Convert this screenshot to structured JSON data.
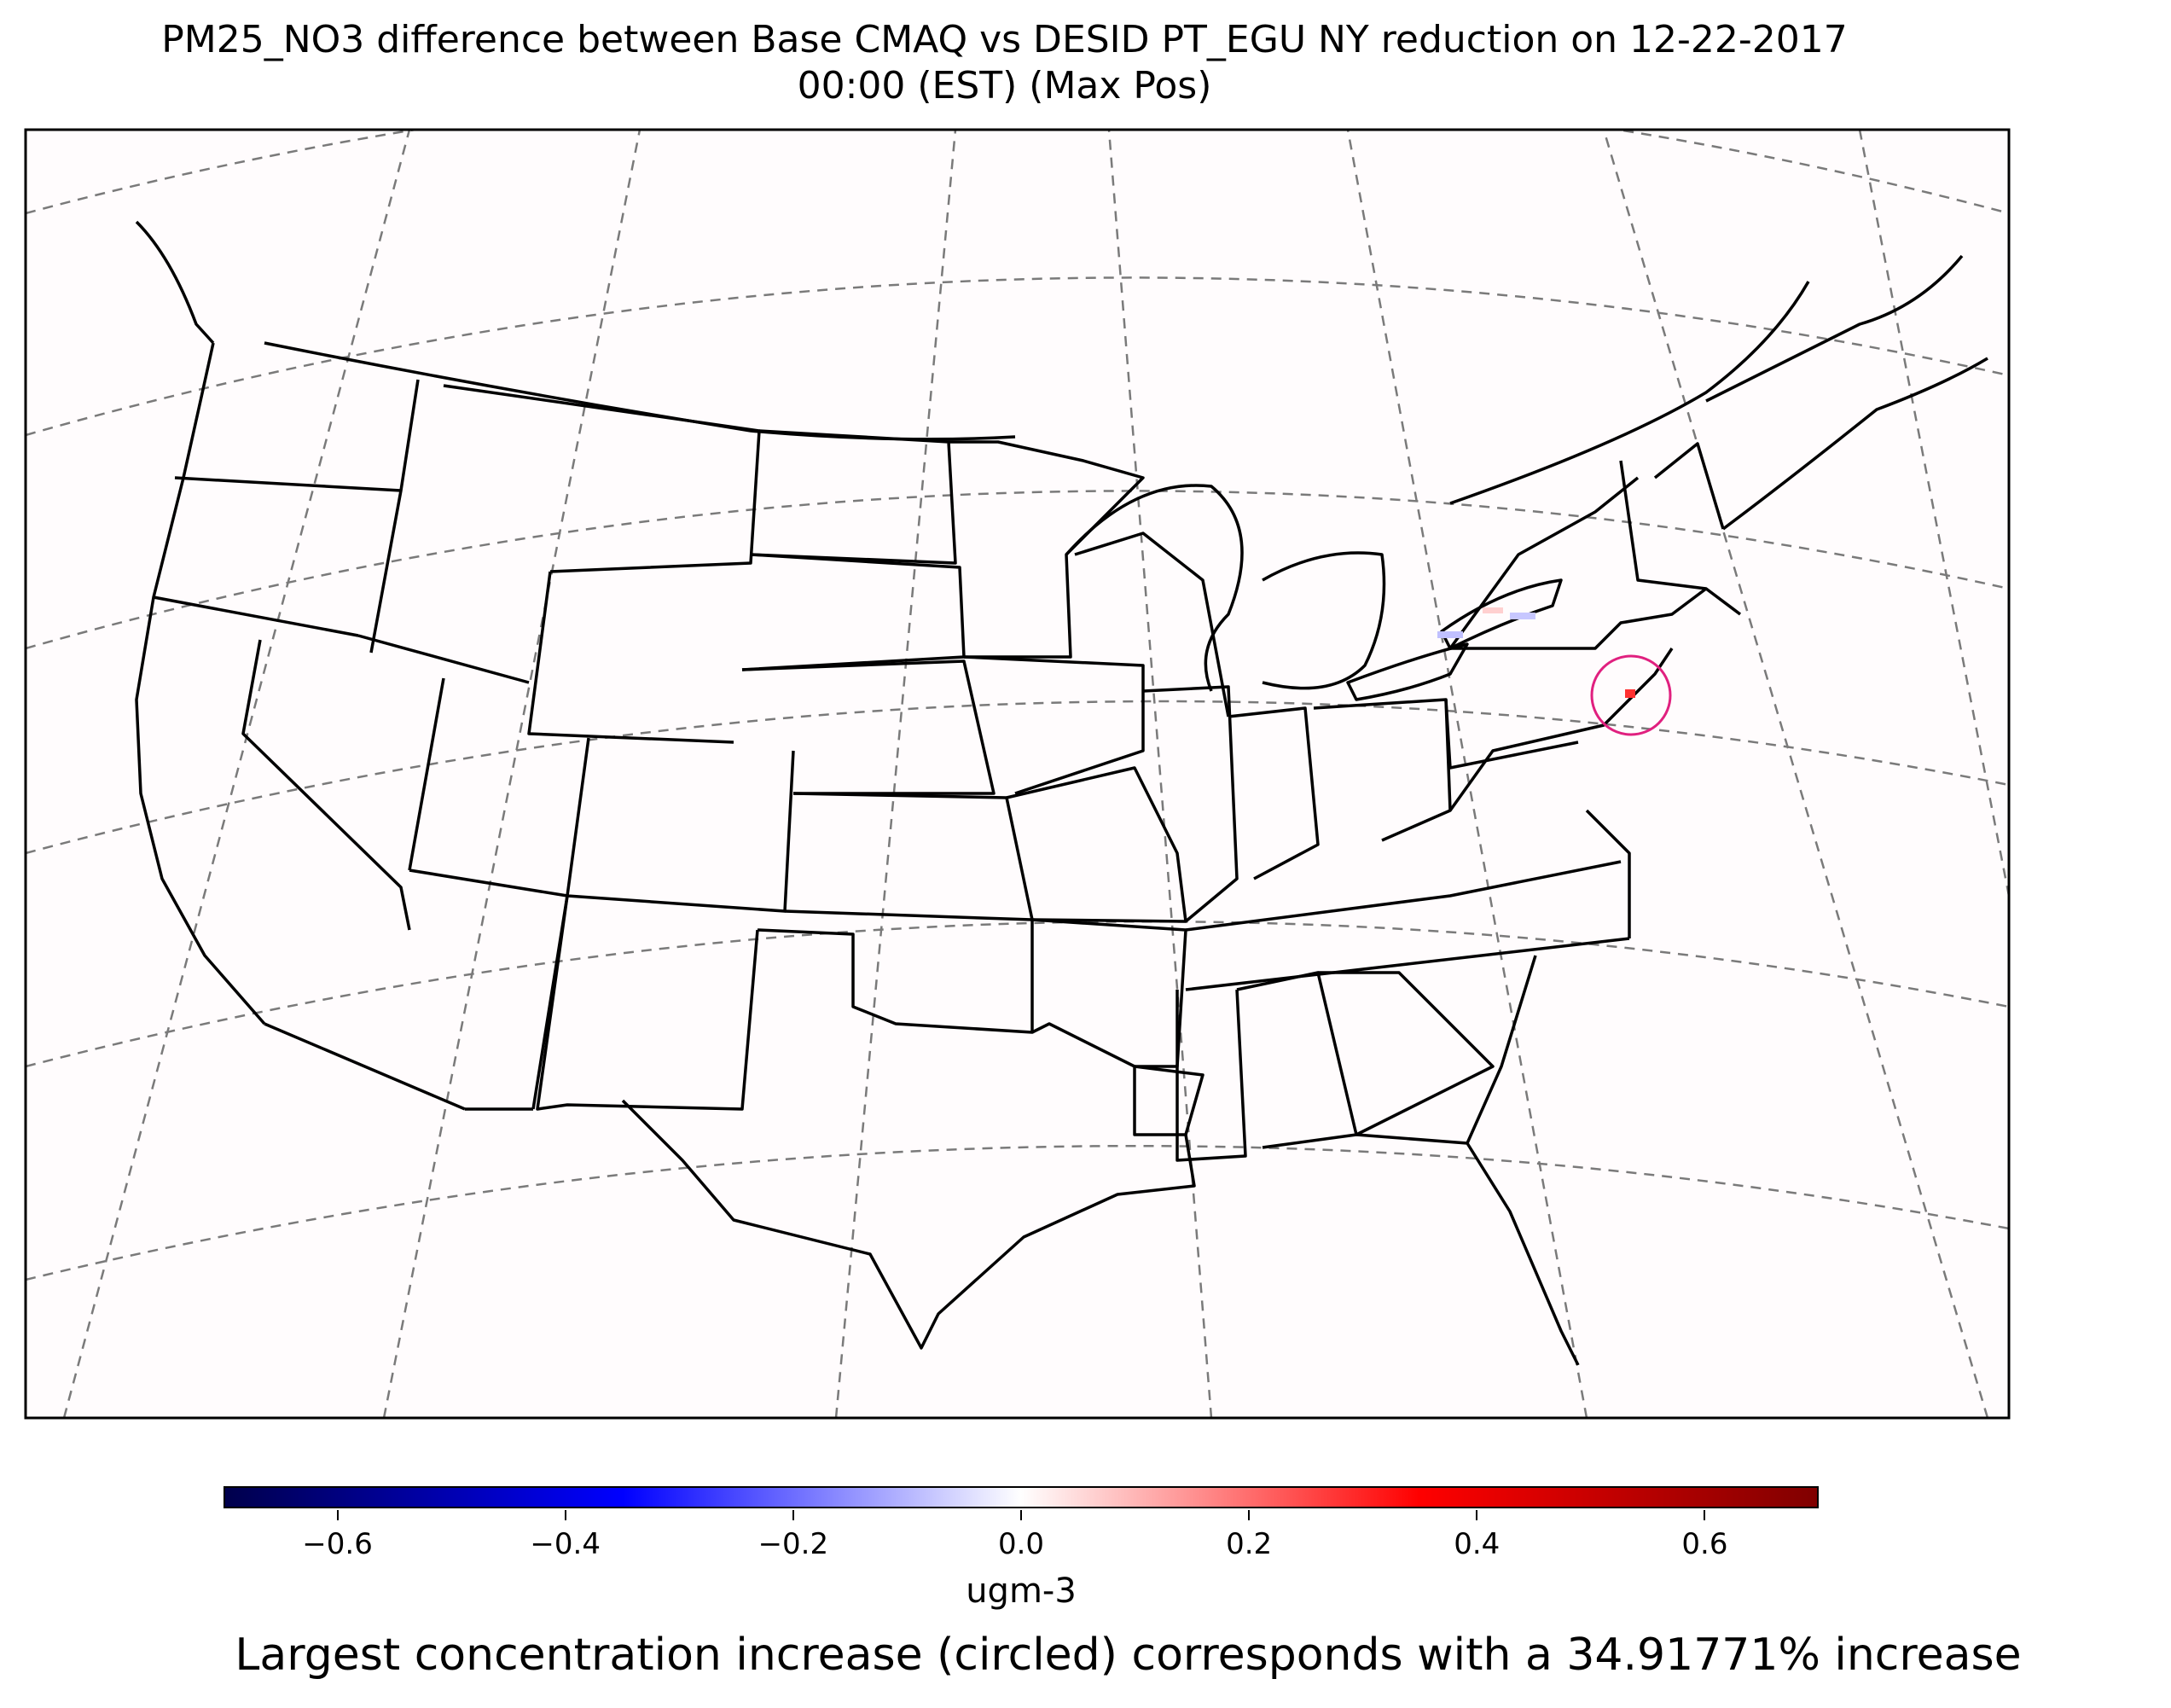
{
  "title": {
    "line1": "PM25_NO3 difference between Base CMAQ vs DESID PT_EGU NY reduction on 12-22-2017",
    "line2": "00:00 (EST)  (Max Pos)"
  },
  "colorbar": {
    "colormap": "seismic",
    "range": [
      -0.7,
      0.7
    ],
    "ticks": [
      "−0.6",
      "−0.4",
      "−0.2",
      "0.0",
      "0.2",
      "0.4",
      "0.6"
    ],
    "tick_values": [
      -0.6,
      -0.4,
      -0.2,
      0.0,
      0.2,
      0.4,
      0.6
    ],
    "units": "ugm-3"
  },
  "map": {
    "projection": "lambert-conformal",
    "region": "contiguous-us",
    "graticule": "dashed-gray",
    "highlight": {
      "name": "max-positive-circle",
      "location": "New York/New Jersey",
      "color": "#e0207f"
    }
  },
  "footer": "Largest concentration increase (circled) corresponds with a 34.91771% increase"
}
